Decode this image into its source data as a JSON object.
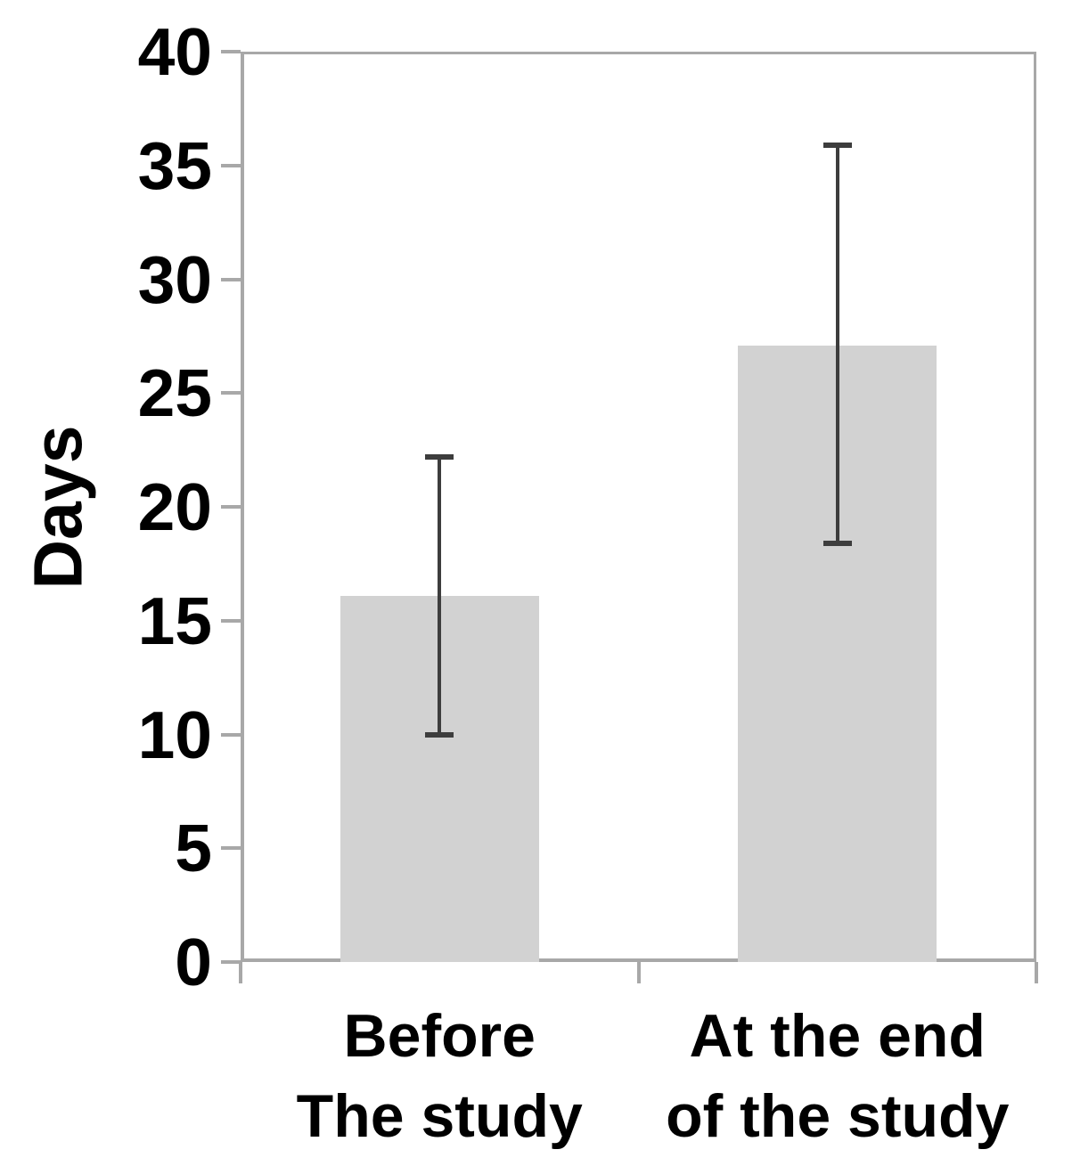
{
  "chart_data": {
    "type": "bar",
    "title": "",
    "xlabel": "",
    "ylabel": "Days",
    "ylim": [
      0,
      40
    ],
    "yticks": [
      0,
      5,
      10,
      15,
      20,
      25,
      30,
      35,
      40
    ],
    "grid": false,
    "legend": false,
    "categories": [
      {
        "lines": [
          "Before",
          "The study"
        ]
      },
      {
        "lines": [
          "At the end",
          "of the study"
        ]
      }
    ],
    "series": [
      {
        "name": "Days",
        "values": [
          16.1,
          27.1
        ],
        "error_low": [
          10.0,
          18.4
        ],
        "error_high": [
          22.2,
          35.9
        ]
      }
    ],
    "colors": {
      "bar_fill": "#d2d2d2",
      "error_bar": "#3d3d3d",
      "axis": "#a8a8a8",
      "text": "#000000",
      "background": "#ffffff"
    }
  }
}
